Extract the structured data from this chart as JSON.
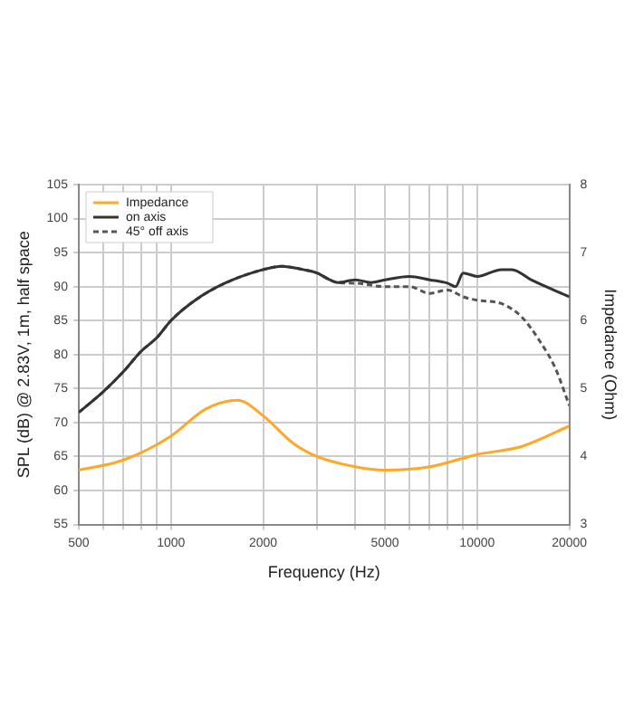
{
  "chart_data": {
    "type": "line",
    "xlabel": "Frequency (Hz)",
    "ylabel": "SPL (dB) @ 2.83V, 1m, half space",
    "y2label": "Impedance (Ohm)",
    "log": "x",
    "grid": true,
    "legend": "top left",
    "marker": "none",
    "xlim": [
      500,
      20000
    ],
    "xticks": [
      500,
      {
        "value": 600,
        "label": null
      },
      {
        "value": 700,
        "label": null
      },
      {
        "value": 800,
        "label": null
      },
      {
        "value": 900,
        "label": null
      },
      1000,
      2000,
      {
        "value": 3000,
        "label": null
      },
      {
        "value": 4000,
        "label": null
      },
      5000,
      {
        "value": 6000,
        "label": null
      },
      {
        "value": 7000,
        "label": null
      },
      {
        "value": 8000,
        "label": null
      },
      {
        "value": 9000,
        "label": null
      },
      10000,
      20000
    ],
    "ylim": [
      55,
      105
    ],
    "yticks": [
      55,
      60,
      65,
      70,
      75,
      80,
      85,
      90,
      95,
      100,
      105
    ],
    "y2lim": [
      3,
      8
    ],
    "y2ticks": [
      3,
      4,
      5,
      6,
      7,
      8
    ],
    "series": [
      {
        "name": "Impedance",
        "color": "#ffa726",
        "axis": "y2",
        "line_style": "solid",
        "x": [
          500,
          700,
          1000,
          1300,
          1650,
          2000,
          2500,
          3000,
          4000,
          5000,
          7000,
          10000,
          14000,
          20000
        ],
        "values": [
          3.8,
          3.95,
          4.3,
          4.7,
          4.83,
          4.6,
          4.2,
          4.0,
          3.85,
          3.8,
          3.85,
          4.03,
          4.15,
          4.45
        ]
      },
      {
        "name": "on axis",
        "color": "#333333",
        "line_style": "solid",
        "x": [
          500,
          600,
          700,
          800,
          900,
          1000,
          1200,
          1500,
          2000,
          2300,
          2700,
          3000,
          3300,
          3500,
          4000,
          4500,
          5000,
          6000,
          7000,
          8000,
          8500,
          9000,
          10000,
          12000,
          13000,
          15000,
          20000
        ],
        "values": [
          71.5,
          74.5,
          77.5,
          80.5,
          82.5,
          85,
          88,
          90.5,
          92.5,
          93,
          92.5,
          92,
          91,
          90.6,
          91,
          90.6,
          91,
          91.5,
          91,
          90.5,
          90,
          92,
          91.5,
          92.5,
          92.5,
          91,
          88.5
        ]
      },
      {
        "name": "45° off axis",
        "color": "#555555",
        "line_style": "dashed",
        "x": [
          500,
          600,
          700,
          800,
          900,
          1000,
          1200,
          1500,
          2000,
          2300,
          2700,
          3000,
          3300,
          3500,
          4000,
          5000,
          6000,
          7000,
          8000,
          9000,
          10000,
          12000,
          14000,
          16000,
          18000,
          20000
        ],
        "values": [
          71.5,
          74.5,
          77.5,
          80.5,
          82.5,
          85,
          88,
          90.5,
          92.5,
          93,
          92.5,
          92,
          91,
          90.6,
          90.5,
          90,
          90,
          89,
          89.5,
          88.5,
          88,
          87.5,
          85.5,
          82,
          78,
          72.5
        ]
      }
    ]
  }
}
